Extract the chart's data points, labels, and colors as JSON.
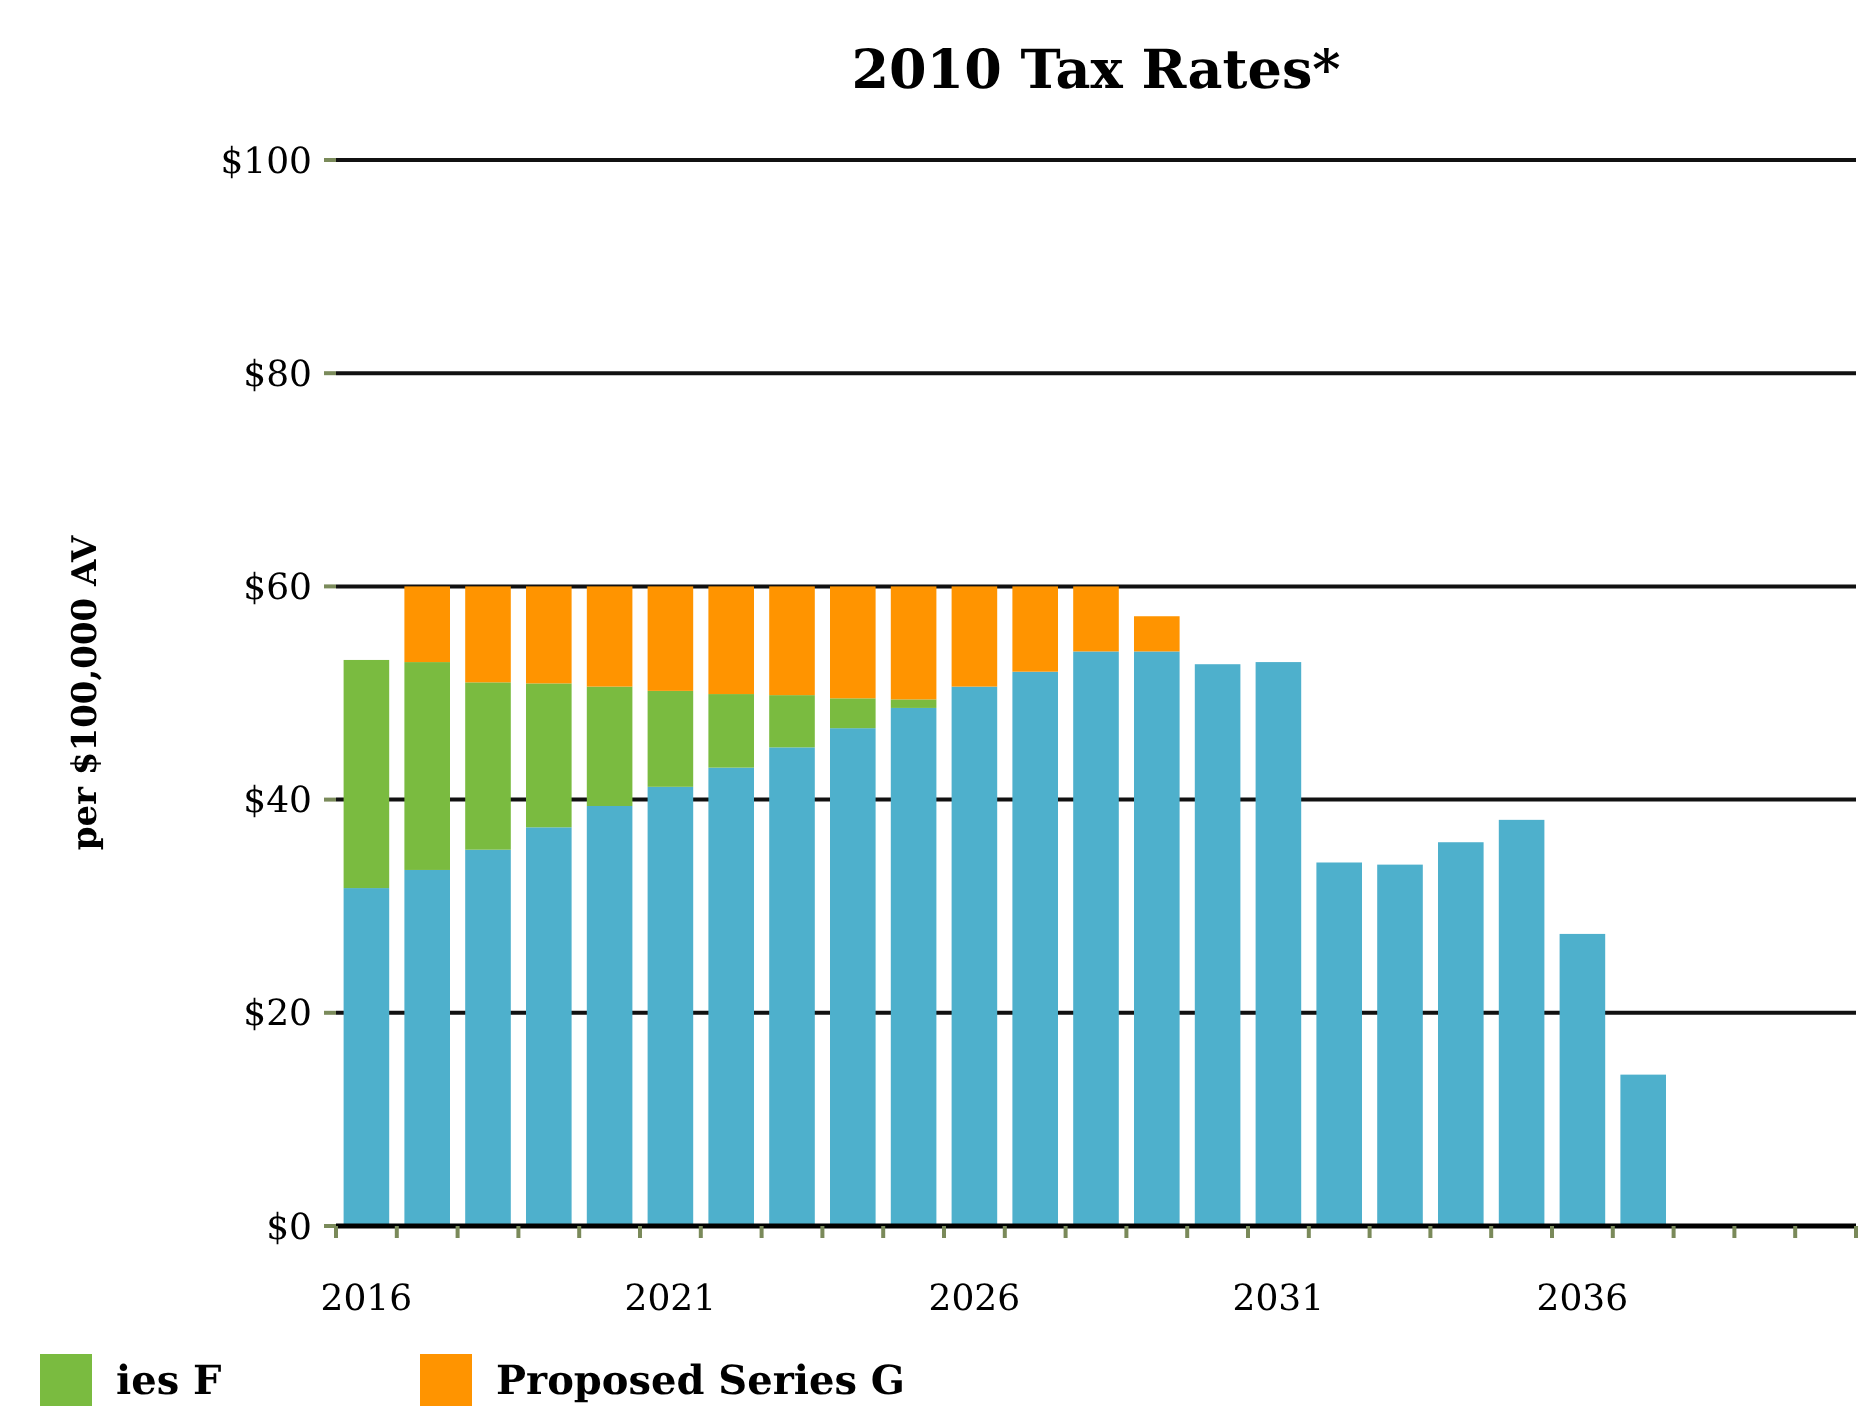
{
  "chart_data": {
    "type": "bar",
    "title": "2010 Tax Rates*",
    "ylabel": "per $100,000 AV",
    "stacked": true,
    "grid": "y",
    "legend": "bottom left",
    "categories": [
      "2016",
      null,
      null,
      null,
      null,
      "2021",
      null,
      null,
      null,
      null,
      "2026",
      null,
      null,
      null,
      null,
      "2031",
      null,
      null,
      null,
      null,
      "2036",
      null,
      null,
      null,
      null
    ],
    "series": [
      {
        "color": "#4eb0cc",
        "values": [
          31.7,
          33.4,
          35.3,
          37.4,
          39.4,
          41.2,
          43.0,
          44.9,
          46.7,
          48.6,
          50.6,
          52.0,
          53.9,
          53.9,
          52.7,
          52.9,
          34.1,
          33.9,
          36.0,
          38.1,
          27.4,
          14.2,
          null,
          null,
          null
        ]
      },
      {
        "name": "ies F",
        "color": "#7abb40",
        "values": [
          21.4,
          19.5,
          15.7,
          13.5,
          11.2,
          9.0,
          6.9,
          4.9,
          2.8,
          0.8,
          null,
          null,
          null,
          null,
          null,
          null,
          null,
          null,
          null,
          null,
          null,
          null,
          null,
          null,
          null
        ]
      },
      {
        "name": "Proposed Series G",
        "color": "#ff9400",
        "values": [
          null,
          7.1,
          9.0,
          9.1,
          9.4,
          9.8,
          10.1,
          10.2,
          10.5,
          10.6,
          9.4,
          8.0,
          6.1,
          3.3,
          null,
          null,
          null,
          null,
          null,
          null,
          null,
          null,
          null,
          null,
          null
        ]
      }
    ],
    "ylim": [
      0,
      100
    ],
    "yticks": [
      {
        "value": 0,
        "label": "$0"
      },
      {
        "value": 20,
        "label": "$20"
      },
      {
        "value": 40,
        "label": "$40"
      },
      {
        "value": 60,
        "label": "$60"
      },
      {
        "value": 80,
        "label": "$80"
      },
      {
        "value": 100,
        "label": "$100"
      }
    ]
  }
}
